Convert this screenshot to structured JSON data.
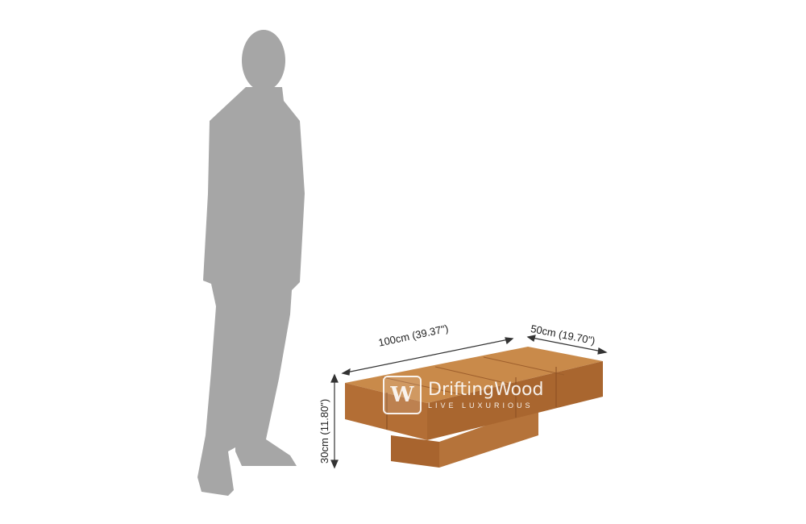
{
  "dimensions": {
    "length": "100cm (39.37\")",
    "width": "50cm (19.70\")",
    "height": "30cm (11.80\")"
  },
  "logo": {
    "mark": "W",
    "name": "DriftingWood",
    "tagline": "LIVE LUXURIOUS"
  },
  "colors": {
    "silhouette": "#a6a6a6",
    "wood_top": "#c98a4a",
    "wood_front": "#b5733a",
    "wood_side": "#9a5c2a"
  }
}
